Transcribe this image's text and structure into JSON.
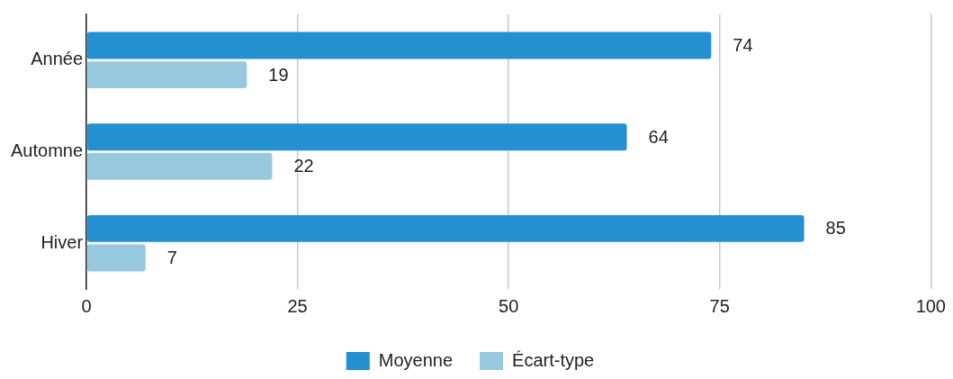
{
  "chart_data": {
    "type": "bar",
    "orientation": "horizontal",
    "categories": [
      "Année",
      "Automne",
      "Hiver"
    ],
    "series": [
      {
        "name": "Moyenne",
        "color": "#2490d0",
        "values": [
          74,
          64,
          85
        ]
      },
      {
        "name": "Écart-type",
        "color": "#98c7e0",
        "values": [
          19,
          22,
          7
        ]
      }
    ],
    "xlim": [
      0,
      100
    ],
    "xticks": [
      0,
      25,
      50,
      75,
      100
    ],
    "grid": "x",
    "legend": "bottom",
    "data_labels": true
  }
}
